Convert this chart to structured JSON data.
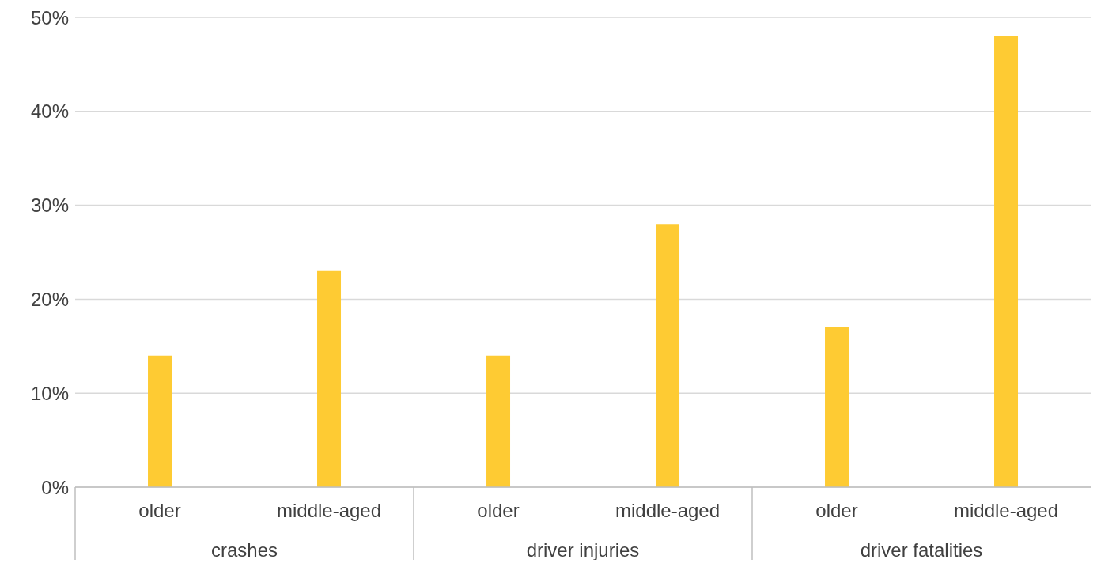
{
  "chart_data": {
    "type": "bar",
    "categories": [
      "older",
      "middle-aged",
      "older",
      "middle-aged",
      "older",
      "middle-aged"
    ],
    "values": [
      14,
      23,
      14,
      28,
      17,
      48
    ],
    "color": "#fecb33",
    "ylim": [
      0,
      50
    ],
    "yticks": [
      {
        "value": 0,
        "label": "0%"
      },
      {
        "value": 10,
        "label": "10%"
      },
      {
        "value": 20,
        "label": "20%"
      },
      {
        "value": 30,
        "label": "30%"
      },
      {
        "value": 40,
        "label": "40%"
      },
      {
        "value": 50,
        "label": "50%"
      }
    ],
    "grid": "y",
    "annotations": [
      "crashes",
      "driver injuries",
      "driver fatalities"
    ]
  }
}
